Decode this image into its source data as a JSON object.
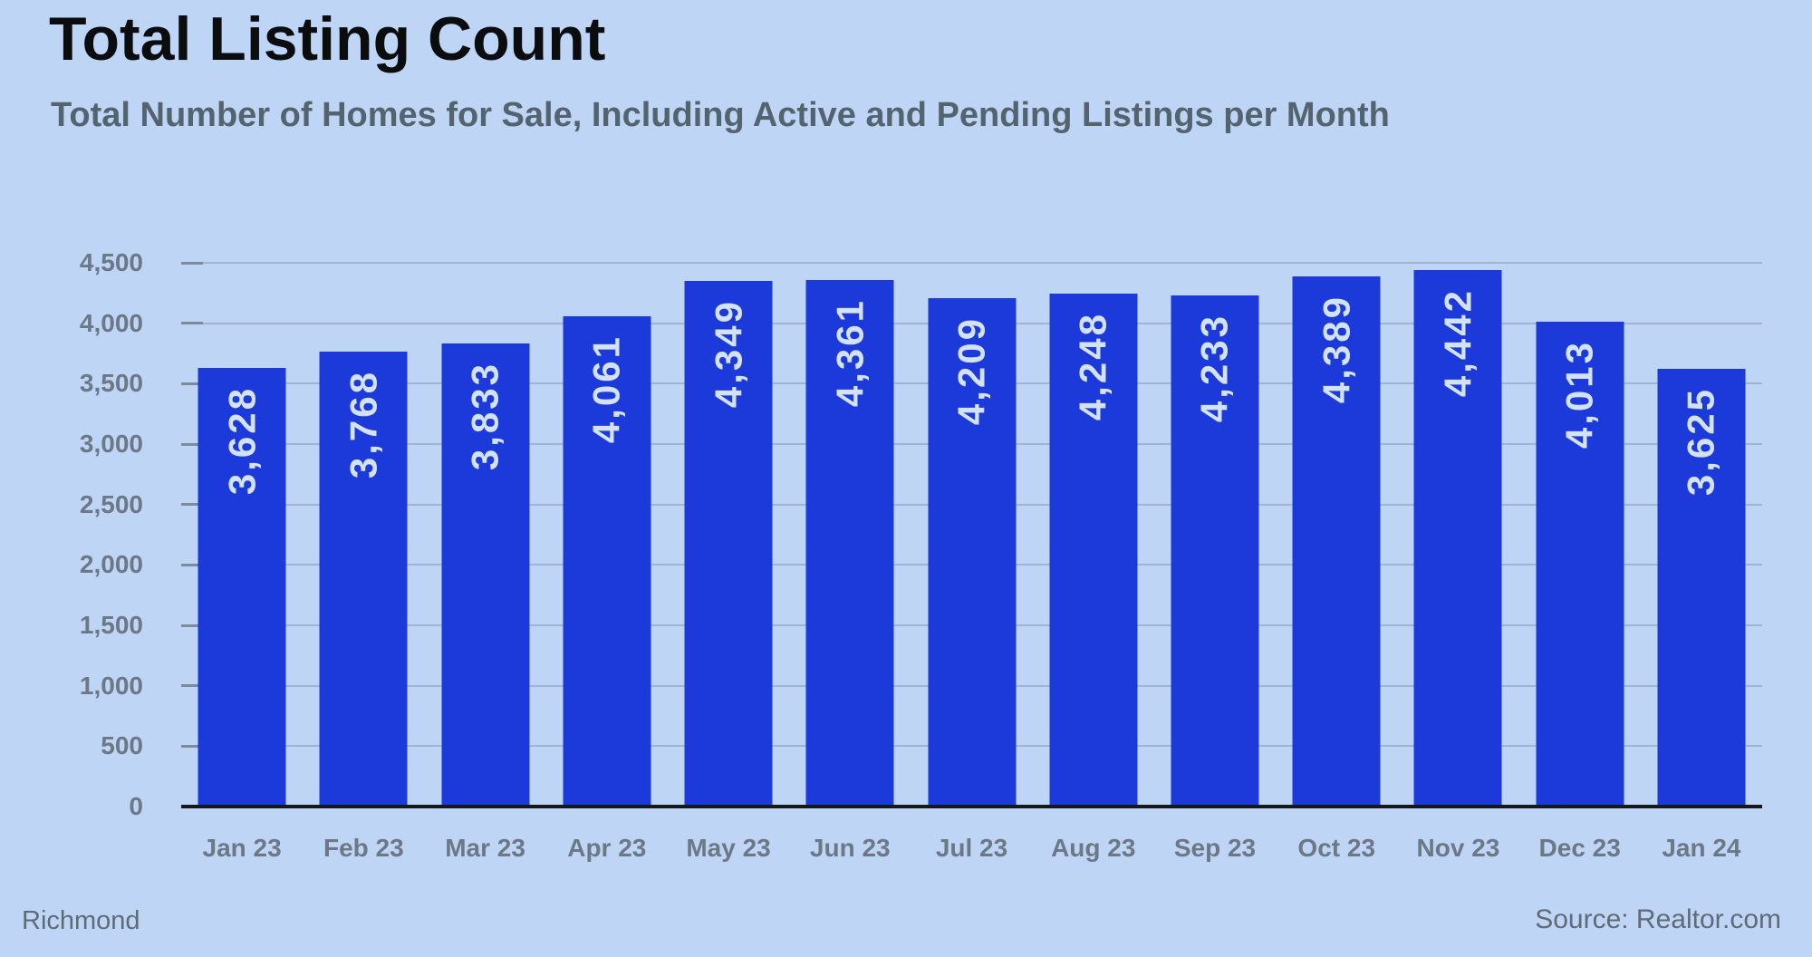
{
  "chart": {
    "title": "Total Listing Count",
    "subtitle": "Total Number of Homes for Sale, Including Active and Pending Listings per Month"
  },
  "footer": {
    "region": "Richmond",
    "source": "Source: Realtor.com"
  },
  "chart_data": {
    "type": "bar",
    "title": "Total Listing Count",
    "subtitle": "Total Number of Homes for Sale, Including Active and Pending Listings per Month",
    "categories": [
      "Jan 23",
      "Feb 23",
      "Mar 23",
      "Apr 23",
      "May 23",
      "Jun 23",
      "Jul 23",
      "Aug 23",
      "Sep 23",
      "Oct 23",
      "Nov 23",
      "Dec 23",
      "Jan 24"
    ],
    "values": [
      3628,
      3768,
      3833,
      4061,
      4349,
      4361,
      4209,
      4248,
      4233,
      4389,
      4442,
      4013,
      3625
    ],
    "value_labels": [
      "3,628",
      "3,768",
      "3,833",
      "4,061",
      "4,349",
      "4,361",
      "4,209",
      "4,248",
      "4,233",
      "4,389",
      "4,442",
      "4,013",
      "3,625"
    ],
    "xlabel": "",
    "ylabel": "",
    "ylim": [
      0,
      4500
    ],
    "ytick_step": 500,
    "ytick_labels": [
      "0",
      "500",
      "1,000",
      "1,500",
      "2,000",
      "2,500",
      "3,000",
      "3,500",
      "4,000",
      "4,500"
    ],
    "grid": "horizontal",
    "legend": "none",
    "bar_label_rotation": "vertical-bottom-to-top",
    "colors": {
      "background": "#bed5f6",
      "bar": "#1b3ad9",
      "bar_label": "#d3e2f8",
      "axis_text": "#6d7887",
      "title_text": "#0b0c0e",
      "subtitle_text": "#54646f",
      "gridline": "rgba(112,126,148,0.38)",
      "baseline": "#14171c",
      "footer_text": "#5f6b77"
    }
  }
}
